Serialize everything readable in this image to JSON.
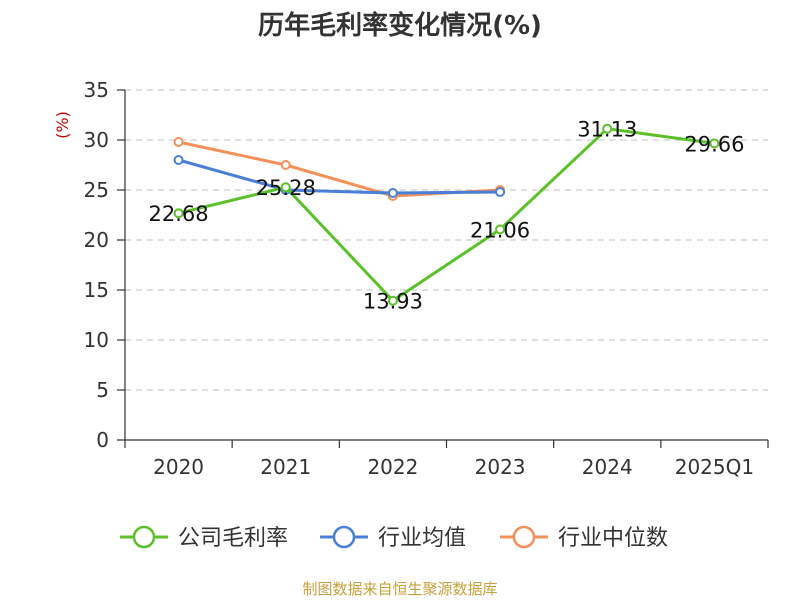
{
  "chart_data": {
    "type": "line",
    "title": "历年毛利率变化情况(%)",
    "ylabel": "(%)",
    "categories": [
      "2020",
      "2021",
      "2022",
      "2023",
      "2024",
      "2025Q1"
    ],
    "ylim": [
      0,
      35
    ],
    "yticks": [
      0,
      5,
      10,
      15,
      20,
      25,
      30,
      35
    ],
    "grid": true,
    "legend_position": "bottom",
    "series": [
      {
        "name": "公司毛利率",
        "color": "#5bc12b",
        "values": [
          22.68,
          25.28,
          13.93,
          21.06,
          31.13,
          29.66
        ],
        "labels": [
          "22.68",
          "25.28",
          "13.93",
          "21.06",
          "31.13",
          "29.66"
        ]
      },
      {
        "name": "行业均值",
        "color": "#4a7fd8",
        "values": [
          28.0,
          25.0,
          24.7,
          24.8,
          null,
          null
        ]
      },
      {
        "name": "行业中位数",
        "color": "#f4905a",
        "values": [
          29.8,
          27.5,
          24.4,
          25.0,
          null,
          null
        ]
      }
    ]
  },
  "source": "制图数据来自恒生聚源数据库"
}
